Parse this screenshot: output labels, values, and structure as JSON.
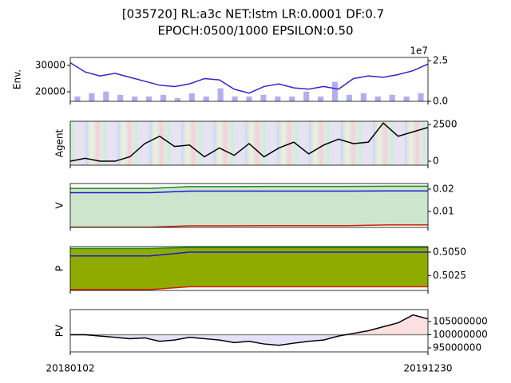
{
  "title": [
    "[035720] RL:a3c NET:lstm LR:0.0001 DF:0.7",
    "EPOCH:0500/1000 EPSILON:0.50"
  ],
  "xtick_labels": [
    "20180102",
    "20191230"
  ],
  "chart_data": [
    {
      "type": "line",
      "ylabel": "Env.",
      "ylim": [
        16400,
        33000
      ],
      "yticks": [
        20000,
        30000
      ],
      "ytick_side": "left",
      "y2lim": [
        0,
        2.7
      ],
      "y2ticks": [
        {
          "value": 0,
          "label": "0.0"
        },
        2.5
      ],
      "y2_offset_label": "1e7",
      "series": [
        {
          "type": "bar",
          "axis": "y2",
          "color": "#b0b0f0",
          "values": [
            0.3,
            0.5,
            0.6,
            0.4,
            0.3,
            0.3,
            0.4,
            0.2,
            0.5,
            0.3,
            0.8,
            0.3,
            0.3,
            0.4,
            0.3,
            0.3,
            0.6,
            0.3,
            1.2,
            0.4,
            0.5,
            0.3,
            0.4,
            0.3,
            0.5
          ]
        },
        {
          "type": "line",
          "color": "#3a22c8",
          "values": [
            31000,
            27500,
            26000,
            27000,
            25500,
            24000,
            22500,
            22000,
            23000,
            25000,
            24500,
            21000,
            19500,
            22000,
            23000,
            21500,
            21000,
            22000,
            21000,
            25000,
            26000,
            25500,
            26500,
            28000,
            30500
          ]
        }
      ]
    },
    {
      "type": "line",
      "ylabel": "Agent",
      "ylim": [
        -270,
        2720
      ],
      "yticks": [
        0,
        2500
      ],
      "ytick_side": "right",
      "background": "stripes",
      "series": [
        {
          "type": "line",
          "color": "#000000",
          "values": [
            0,
            200,
            0,
            0,
            300,
            1200,
            1700,
            1000,
            1100,
            300,
            900,
            400,
            1200,
            300,
            900,
            1300,
            500,
            1100,
            1500,
            1200,
            1300,
            2600,
            1700,
            2000,
            2300
          ]
        }
      ]
    },
    {
      "type": "line",
      "ylabel": "V",
      "ylim": [
        0.0029,
        0.0225
      ],
      "yticks": [
        0.01,
        0.02
      ],
      "ytick_side": "right",
      "fill": {
        "between": [
          0,
          2
        ],
        "color": "#cde5cd"
      },
      "series": [
        {
          "type": "line",
          "color": "#1a8a1a",
          "values": [
            0.0203,
            0.0203,
            0.0203,
            0.0211,
            0.0211,
            0.0212,
            0.0212,
            0.0212,
            0.0213,
            0.0213
          ]
        },
        {
          "type": "line",
          "color": "#1a1ad0",
          "values": [
            0.0184,
            0.0184,
            0.0184,
            0.0191,
            0.0191,
            0.0191,
            0.0191,
            0.0191,
            0.0192,
            0.0192
          ]
        },
        {
          "type": "line",
          "color": "#d02000",
          "values": [
            0.003,
            0.003,
            0.003,
            0.0036,
            0.0036,
            0.0037,
            0.0037,
            0.0037,
            0.004,
            0.004
          ]
        }
      ]
    },
    {
      "type": "line",
      "ylabel": "P",
      "ylim": [
        0.5009,
        0.5056
      ],
      "yticks": [
        0.5025,
        {
          "value": 0.505,
          "label": "0.5050"
        }
      ],
      "ytick_side": "right",
      "fill": {
        "between": [
          0,
          2
        ],
        "color": "#8fab00"
      },
      "series": [
        {
          "type": "line",
          "color": "#1a8a1a",
          "values": [
            0.5054,
            0.5054,
            0.5054,
            0.5055,
            0.5055,
            0.5055,
            0.5055,
            0.5055,
            0.5055,
            0.5055
          ]
        },
        {
          "type": "line",
          "color": "#1a1ad0",
          "values": [
            0.5046,
            0.5046,
            0.5046,
            0.505,
            0.505,
            0.505,
            0.505,
            0.505,
            0.505,
            0.505
          ]
        },
        {
          "type": "line",
          "color": "#d02000",
          "values": [
            0.501,
            0.501,
            0.501,
            0.5013,
            0.5013,
            0.5013,
            0.5013,
            0.5013,
            0.5013,
            0.5013
          ]
        }
      ]
    },
    {
      "type": "line",
      "ylabel": "PV",
      "ylim": [
        93500000,
        109500000
      ],
      "yticks": [
        95000000,
        100000000,
        105000000
      ],
      "ytick_side": "right",
      "baseline": 100000000,
      "fill_above_color": "#fde0e0",
      "fill_below_color": "#e4e2fa",
      "series": [
        {
          "type": "line",
          "color": "#000000",
          "values": [
            100000000,
            100000000,
            99500000,
            99000000,
            98500000,
            98800000,
            97500000,
            98000000,
            99000000,
            98500000,
            98000000,
            97000000,
            97500000,
            96500000,
            96000000,
            96800000,
            97500000,
            98000000,
            99500000,
            100500000,
            101500000,
            103000000,
            104500000,
            107500000,
            106000000
          ]
        }
      ]
    }
  ]
}
